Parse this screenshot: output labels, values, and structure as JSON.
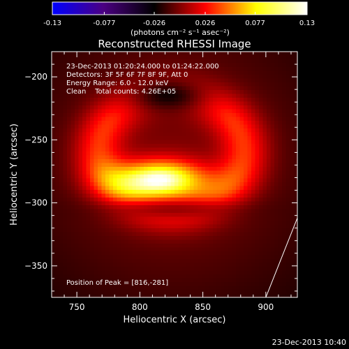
{
  "chart_data": {
    "type": "heatmap",
    "title": "Reconstructed RHESSI Image",
    "xlabel": "Heliocentric X (arcsec)",
    "ylabel": "Heliocentric Y (arcsec)",
    "xlim": [
      730,
      925
    ],
    "ylim": [
      -375,
      -180
    ],
    "xticks": [
      750,
      800,
      850,
      900
    ],
    "yticks": [
      -200,
      -250,
      -300,
      -350
    ],
    "colorbar": {
      "range": [
        -0.13,
        0.13
      ],
      "ticks": [
        "-0.13",
        "-0.077",
        "-0.026",
        "0.026",
        "0.077",
        "0.13"
      ],
      "units_label": "(photons cm⁻² s⁻¹ asec⁻²)",
      "colormap": [
        "#0000ff",
        "#4b0082",
        "#000000",
        "#ff0000",
        "#ffff00",
        "#ffffff"
      ]
    },
    "annotations": [
      "23-Dec-2013 01:20:24.000 to 01:24:22.000",
      "Detectors: 3F 5F 6F 7F 8F 9F, Att 0",
      "Energy Range: 6.0 - 12.0 keV",
      "Clean    Total counts: 4.26E+05"
    ],
    "peak_label": "Position of Peak = [816,-281]",
    "limb_line": [
      [
        900,
        -375
      ],
      [
        925,
        -312
      ]
    ],
    "emission": {
      "peak": [
        816,
        -281
      ],
      "peak_value": 0.13,
      "ring_center": [
        825,
        -260
      ],
      "ring_radius": 58,
      "ring_value": 0.045,
      "background_value": 0.025,
      "dark_hole_center": [
        822,
        -215
      ],
      "dark_hole_value": 0.003
    }
  },
  "footer": {
    "timestamp": "23-Dec-2013 10:40"
  }
}
